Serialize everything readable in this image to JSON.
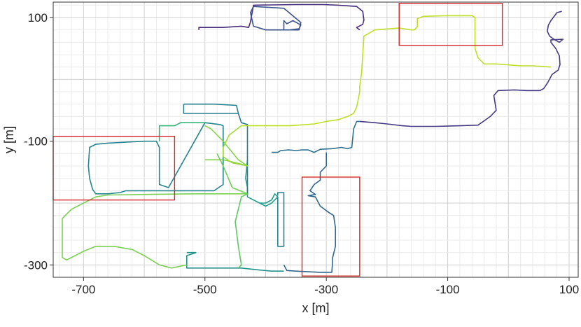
{
  "chart_data": {
    "type": "line",
    "title": "",
    "xlabel": "x [m]",
    "ylabel": "y [m]",
    "xlim": [
      -750,
      115
    ],
    "ylim": [
      -320,
      125
    ],
    "x_ticks": [
      -700,
      -500,
      -300,
      -100,
      100
    ],
    "x_tick_labels": [
      "-700",
      "-500",
      "-300",
      "-100",
      "100"
    ],
    "y_ticks": [
      100,
      -100,
      -300
    ],
    "y_tick_labels": [
      "100",
      "-100",
      "-300"
    ],
    "grid": true,
    "colormap": "viridis",
    "series": [
      {
        "color": "#472d7b",
        "points": [
          [
            -510,
            80
          ],
          [
            -510,
            84
          ],
          [
            -470,
            84
          ],
          [
            -440,
            86
          ],
          [
            -428,
            84
          ],
          [
            -425,
            93
          ],
          [
            -420,
            120
          ],
          [
            -350,
            121
          ],
          [
            -305,
            121
          ],
          [
            -280,
            120
          ],
          [
            -250,
            118
          ],
          [
            -240,
            110
          ],
          [
            -238,
            96
          ],
          [
            -240,
            89
          ],
          [
            -250,
            84
          ],
          [
            -245,
            80
          ]
        ]
      },
      {
        "color": "#3b528b",
        "points": [
          [
            -420,
            118
          ],
          [
            -425,
            108
          ],
          [
            -420,
            86
          ],
          [
            -400,
            80
          ],
          [
            -360,
            80
          ],
          [
            -345,
            82
          ],
          [
            -342,
            88
          ],
          [
            -355,
            95
          ],
          [
            -365,
            90
          ],
          [
            -370,
            95
          ],
          [
            -370,
            80
          ],
          [
            -345,
            80
          ],
          [
            -342,
            92
          ],
          [
            -370,
            115
          ],
          [
            -420,
            118
          ]
        ]
      },
      {
        "color": "#443a83",
        "points": [
          [
            -245,
            -68
          ],
          [
            -220,
            -70
          ],
          [
            -200,
            -72
          ],
          [
            -175,
            -75
          ],
          [
            -160,
            -76
          ],
          [
            -120,
            -76
          ],
          [
            -80,
            -75
          ],
          [
            -50,
            -74
          ],
          [
            -40,
            -67
          ],
          [
            -30,
            -60
          ],
          [
            -20,
            -50
          ],
          [
            -24,
            -26
          ],
          [
            -17,
            -18
          ],
          [
            10,
            -17
          ],
          [
            30,
            -18
          ],
          [
            52,
            -18
          ],
          [
            58,
            -15
          ],
          [
            65,
            -5
          ],
          [
            72,
            8
          ],
          [
            82,
            15
          ],
          [
            85,
            24
          ],
          [
            84,
            38
          ],
          [
            78,
            50
          ],
          [
            70,
            60
          ],
          [
            70,
            64
          ],
          [
            90,
            65
          ],
          [
            84,
            60
          ],
          [
            75,
            65
          ],
          [
            68,
            70
          ],
          [
            64,
            78
          ],
          [
            66,
            88
          ],
          [
            70,
            95
          ],
          [
            80,
            108
          ],
          [
            88,
            110
          ]
        ]
      },
      {
        "color": "#2c728e",
        "points": [
          [
            -245,
            -68
          ],
          [
            -250,
            -68
          ],
          [
            -255,
            -80
          ],
          [
            -258,
            -110
          ],
          [
            -265,
            -112
          ],
          [
            -275,
            -110
          ],
          [
            -290,
            -112
          ],
          [
            -310,
            -113
          ],
          [
            -320,
            -118
          ],
          [
            -330,
            -114
          ],
          [
            -340,
            -114
          ],
          [
            -350,
            -115
          ],
          [
            -362,
            -114
          ],
          [
            -375,
            -115
          ],
          [
            -380,
            -118
          ],
          [
            -390,
            -118
          ]
        ]
      },
      {
        "color": "#31688e",
        "points": [
          [
            -300,
            -118
          ],
          [
            -300,
            -140
          ],
          [
            -310,
            -150
          ],
          [
            -310,
            -163
          ],
          [
            -320,
            -170
          ],
          [
            -327,
            -180
          ],
          [
            -318,
            -186
          ],
          [
            -330,
            -188
          ],
          [
            -318,
            -190
          ],
          [
            -310,
            -205
          ],
          [
            -296,
            -215
          ],
          [
            -288,
            -220
          ],
          [
            -285,
            -240
          ],
          [
            -285,
            -270
          ],
          [
            -290,
            -290
          ],
          [
            -290,
            -300
          ],
          [
            -291,
            -312
          ],
          [
            -310,
            -312
          ],
          [
            -350,
            -310
          ],
          [
            -365,
            -309
          ],
          [
            -370,
            -300
          ]
        ]
      },
      {
        "color": "#26828e",
        "points": [
          [
            -380,
            -188
          ],
          [
            -380,
            -183
          ],
          [
            -370,
            -183
          ],
          [
            -370,
            -270
          ],
          [
            -380,
            -270
          ],
          [
            -380,
            -190
          ]
        ]
      },
      {
        "color": "#21918c",
        "points": [
          [
            -370,
            -310
          ],
          [
            -390,
            -310
          ],
          [
            -412,
            -308
          ],
          [
            -440,
            -305
          ],
          [
            -460,
            -305
          ],
          [
            -480,
            -305
          ],
          [
            -500,
            -305
          ],
          [
            -530,
            -305
          ],
          [
            -530,
            -285
          ],
          [
            -515,
            -280
          ],
          [
            -530,
            -280
          ]
        ]
      },
      {
        "color": "#1f9e89",
        "points": [
          [
            -430,
            -130
          ],
          [
            -433,
            -160
          ],
          [
            -430,
            -175
          ],
          [
            -430,
            -190
          ],
          [
            -410,
            -200
          ],
          [
            -400,
            -205
          ],
          [
            -390,
            -200
          ],
          [
            -380,
            -190
          ],
          [
            -385,
            -185
          ],
          [
            -390,
            -195
          ],
          [
            -400,
            -200
          ],
          [
            -410,
            -200
          ]
        ]
      },
      {
        "color": "#26828e",
        "points": [
          [
            -535,
            -40
          ],
          [
            -535,
            -55
          ],
          [
            -530,
            -55
          ],
          [
            -445,
            -55
          ],
          [
            -448,
            -42
          ],
          [
            -485,
            -40
          ],
          [
            -535,
            -40
          ]
        ]
      },
      {
        "color": "#2a788e",
        "points": [
          [
            -445,
            -55
          ],
          [
            -440,
            -70
          ],
          [
            -430,
            -73
          ],
          [
            -430,
            -130
          ],
          [
            -430,
            -185
          ]
        ]
      },
      {
        "color": "#25858e",
        "points": [
          [
            -500,
            -70
          ],
          [
            -500,
            -70
          ],
          [
            -475,
            -73
          ],
          [
            -470,
            -75
          ],
          [
            -470,
            -130
          ],
          [
            -470,
            -170
          ],
          [
            -485,
            -180
          ],
          [
            -500,
            -180
          ],
          [
            -560,
            -180
          ],
          [
            -600,
            -180
          ],
          [
            -615,
            -180
          ],
          [
            -630,
            -180
          ],
          [
            -640,
            -183
          ],
          [
            -660,
            -185
          ],
          [
            -680,
            -185
          ],
          [
            -685,
            -178
          ],
          [
            -690,
            -160
          ],
          [
            -692,
            -140
          ],
          [
            -690,
            -110
          ],
          [
            -680,
            -105
          ],
          [
            -660,
            -103
          ],
          [
            -640,
            -102
          ],
          [
            -620,
            -101
          ],
          [
            -600,
            -100
          ],
          [
            -580,
            -100
          ],
          [
            -575,
            -110
          ],
          [
            -575,
            -145
          ],
          [
            -575,
            -170
          ],
          [
            -560,
            -175
          ],
          [
            -500,
            -70
          ]
        ]
      },
      {
        "color": "#35b779",
        "points": [
          [
            -500,
            -70
          ],
          [
            -540,
            -70
          ],
          [
            -550,
            -75
          ],
          [
            -560,
            -75
          ],
          [
            -575,
            -75
          ],
          [
            -575,
            -100
          ]
        ]
      },
      {
        "color": "#5ec962",
        "points": [
          [
            -430,
            -185
          ],
          [
            -440,
            -190
          ],
          [
            -450,
            -230
          ],
          [
            -445,
            -270
          ],
          [
            -440,
            -300
          ],
          [
            -445,
            -305
          ]
        ]
      },
      {
        "color": "#7ad151",
        "points": [
          [
            -430,
            -185
          ],
          [
            -445,
            -185
          ],
          [
            -520,
            -185
          ],
          [
            -600,
            -186
          ],
          [
            -660,
            -187
          ],
          [
            -680,
            -190
          ],
          [
            -690,
            -195
          ],
          [
            -720,
            -210
          ],
          [
            -735,
            -225
          ],
          [
            -735,
            -240
          ],
          [
            -735,
            -270
          ],
          [
            -735,
            -288
          ],
          [
            -728,
            -292
          ],
          [
            -700,
            -278
          ],
          [
            -680,
            -270
          ],
          [
            -650,
            -270
          ],
          [
            -620,
            -275
          ],
          [
            -600,
            -285
          ],
          [
            -575,
            -300
          ],
          [
            -555,
            -305
          ],
          [
            -530,
            -300
          ]
        ]
      },
      {
        "color": "#86d549",
        "points": [
          [
            -500,
            -130
          ],
          [
            -470,
            -130
          ],
          [
            -448,
            -135
          ],
          [
            -430,
            -140
          ],
          [
            -445,
            -130
          ],
          [
            -470,
            -100
          ],
          [
            -490,
            -80
          ],
          [
            -500,
            -75
          ]
        ]
      },
      {
        "color": "#bddf26",
        "points": [
          [
            -440,
            -75
          ],
          [
            -360,
            -75
          ],
          [
            -320,
            -72
          ],
          [
            -300,
            -68
          ],
          [
            -280,
            -65
          ],
          [
            -265,
            -60
          ],
          [
            -255,
            -55
          ],
          [
            -250,
            -45
          ],
          [
            -245,
            -20
          ],
          [
            -245,
            -10
          ],
          [
            -242,
            10
          ],
          [
            -240,
            40
          ],
          [
            -238,
            70
          ],
          [
            -220,
            80
          ],
          [
            -180,
            83
          ],
          [
            -160,
            80
          ],
          [
            -155,
            80
          ],
          [
            -150,
            85
          ],
          [
            -150,
            98
          ],
          [
            -140,
            102
          ],
          [
            -100,
            103
          ],
          [
            -60,
            103
          ],
          [
            -55,
            100
          ],
          [
            -55,
            50
          ],
          [
            -50,
            35
          ],
          [
            -40,
            25
          ],
          [
            -20,
            25
          ],
          [
            20,
            22
          ],
          [
            40,
            22
          ],
          [
            70,
            20
          ]
        ]
      },
      {
        "color": "#6ece58",
        "points": [
          [
            -430,
            -185
          ],
          [
            -455,
            -175
          ],
          [
            -470,
            -140
          ],
          [
            -480,
            -120
          ]
        ]
      },
      {
        "color": "#a0da39",
        "points": [
          [
            -440,
            -75
          ],
          [
            -460,
            -90
          ],
          [
            -470,
            -110
          ],
          [
            -470,
            -125
          ],
          [
            -455,
            -135
          ],
          [
            -430,
            -140
          ]
        ]
      }
    ],
    "highlight_boxes": [
      {
        "x": [
          -180,
          -10
        ],
        "y": [
          55,
          123
        ]
      },
      {
        "x": [
          -750,
          -550
        ],
        "y": [
          -92,
          -195
        ]
      },
      {
        "x": [
          -340,
          -245
        ],
        "y": [
          -158,
          -318
        ]
      }
    ]
  }
}
